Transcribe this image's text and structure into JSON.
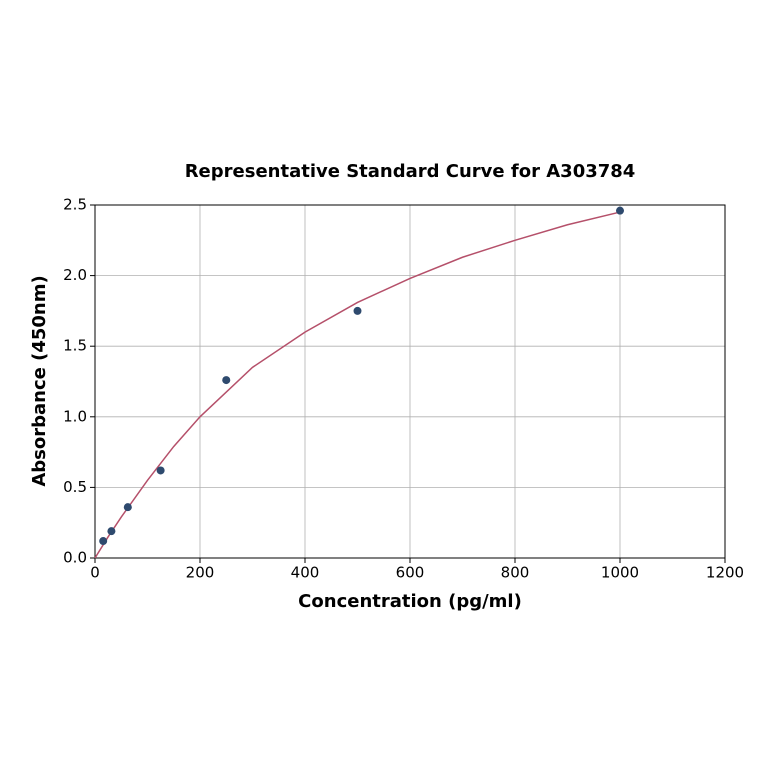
{
  "chart_data": {
    "type": "scatter",
    "title": "Representative Standard Curve for A303784",
    "x_label": "Concentration (pg/ml)",
    "y_label": "Absorbance (450nm)",
    "xlim": [
      0,
      1200
    ],
    "xticks": [
      0,
      200,
      400,
      600,
      800,
      1000,
      1200
    ],
    "ylim": [
      0,
      2.5
    ],
    "yticks": [
      {
        "value": 0,
        "label": "0.0"
      },
      0.5,
      {
        "value": 1,
        "label": "1.0"
      },
      1.5,
      {
        "value": 2,
        "label": "2.0"
      },
      2.5
    ],
    "grid": true,
    "series": [
      {
        "type": "line",
        "color": "#b5506a",
        "x": [
          0,
          25,
          50,
          100,
          150,
          200,
          300,
          400,
          500,
          600,
          700,
          800,
          900,
          1000
        ],
        "values": [
          0,
          0.15,
          0.29,
          0.55,
          0.79,
          1.0,
          1.35,
          1.6,
          1.81,
          1.98,
          2.13,
          2.25,
          2.36,
          2.45
        ]
      },
      {
        "type": "scatter",
        "color": "#2e4a6e",
        "x": [
          15.6,
          31.25,
          62.5,
          125,
          250,
          500,
          1000
        ],
        "values": [
          0.12,
          0.19,
          0.36,
          0.62,
          1.26,
          1.75,
          2.46
        ]
      }
    ]
  }
}
